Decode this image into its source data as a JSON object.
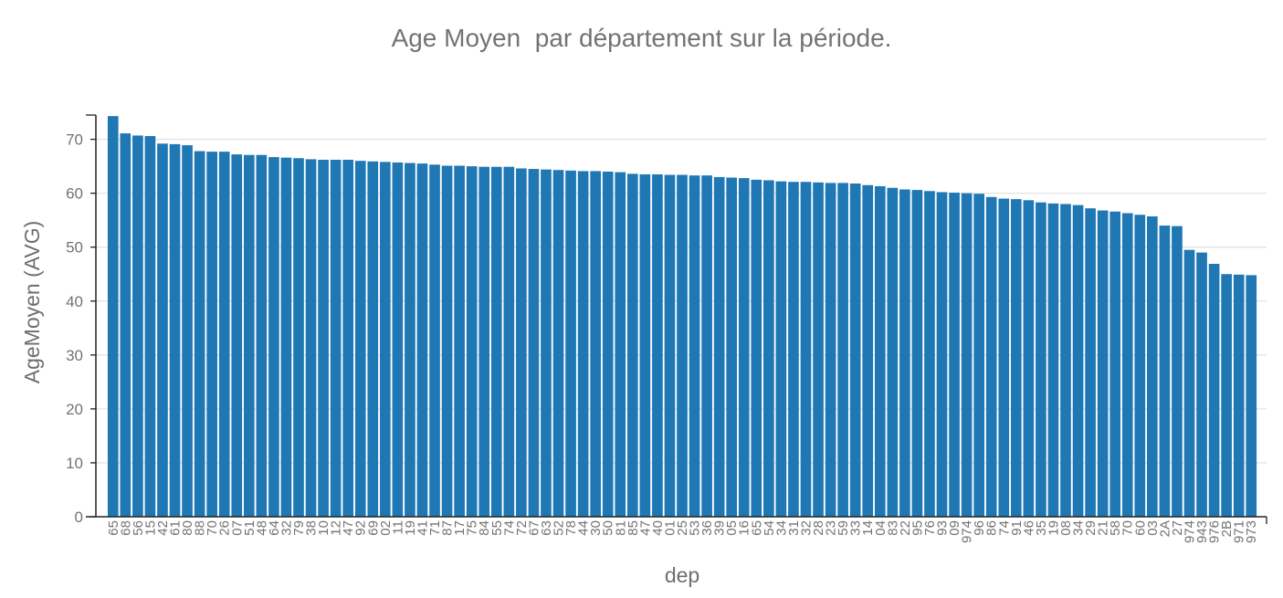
{
  "chart_data": {
    "type": "bar",
    "title": "Age Moyen  par département sur la période.",
    "xlabel": "dep",
    "ylabel": "AgeMoyen (AVG)",
    "ylim": [
      0,
      74.5
    ],
    "yticks": [
      0,
      10,
      20,
      30,
      40,
      50,
      60,
      70
    ],
    "grid": true,
    "bar_color": "#1f77b4",
    "categories": [
      "65",
      "68",
      "56",
      "15",
      "42",
      "61",
      "80",
      "88",
      "70",
      "26",
      "07",
      "51",
      "48",
      "64",
      "32",
      "79",
      "38",
      "10",
      "12",
      "47",
      "92",
      "69",
      "02",
      "11",
      "19",
      "41",
      "71",
      "87",
      "17",
      "75",
      "84",
      "55",
      "74",
      "72",
      "67",
      "63",
      "52",
      "78",
      "44",
      "30",
      "50",
      "81",
      "85",
      "47",
      "40",
      "01",
      "25",
      "53",
      "36",
      "39",
      "05",
      "16",
      "65",
      "54",
      "34",
      "31",
      "32",
      "28",
      "23",
      "59",
      "33",
      "14",
      "04",
      "83",
      "22",
      "95",
      "76",
      "93",
      "09",
      "974",
      "96",
      "86",
      "74",
      "91",
      "46",
      "35",
      "19",
      "08",
      "34",
      "29",
      "21",
      "58",
      "70",
      "60",
      "03",
      "2A",
      "27",
      "974",
      "943",
      "976",
      "2B",
      "971",
      "973"
    ],
    "values": [
      74.3,
      71.1,
      70.7,
      70.6,
      69.2,
      69.1,
      68.9,
      67.8,
      67.7,
      67.7,
      67.2,
      67.1,
      67.1,
      66.7,
      66.6,
      66.5,
      66.3,
      66.2,
      66.2,
      66.2,
      66.0,
      65.9,
      65.8,
      65.7,
      65.6,
      65.5,
      65.3,
      65.1,
      65.1,
      65.0,
      64.9,
      64.9,
      64.9,
      64.6,
      64.5,
      64.4,
      64.3,
      64.2,
      64.1,
      64.1,
      64.0,
      63.9,
      63.6,
      63.5,
      63.5,
      63.4,
      63.4,
      63.3,
      63.3,
      63.0,
      62.9,
      62.8,
      62.5,
      62.4,
      62.2,
      62.1,
      62.1,
      62.0,
      61.9,
      61.9,
      61.8,
      61.5,
      61.3,
      61.0,
      60.7,
      60.6,
      60.4,
      60.2,
      60.1,
      60.0,
      59.9,
      59.3,
      59.0,
      58.9,
      58.7,
      58.3,
      58.1,
      58.0,
      57.8,
      57.2,
      56.8,
      56.6,
      56.3,
      56.0,
      55.7,
      54.0,
      53.9,
      49.5,
      49.0,
      46.9,
      45.0,
      44.9,
      44.8
    ]
  }
}
